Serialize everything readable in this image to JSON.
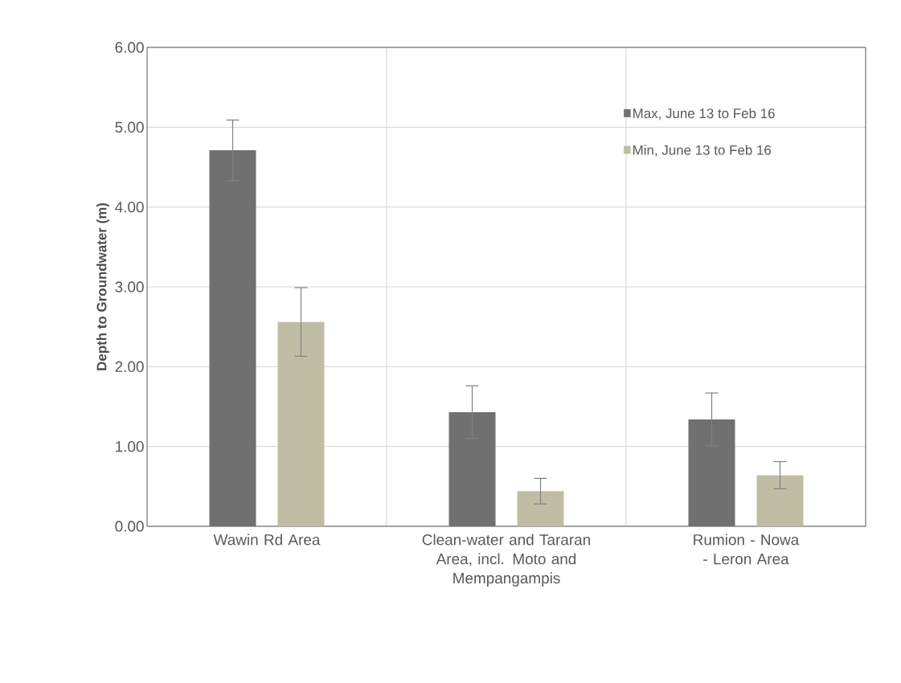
{
  "chart_data": {
    "type": "bar",
    "ylabel": "Depth to Groundwater (m)",
    "categories": [
      "Wawin Rd Area",
      "Clean-water and Tararan Area, incl. Moto and Mempangampis",
      "Rumion - Nowa - Leron Area"
    ],
    "series": [
      {
        "name": "Max, June 13 to Feb 16",
        "color": "#707070",
        "values": [
          4.71,
          1.43,
          1.34
        ],
        "errors": [
          0.38,
          0.33,
          0.33
        ]
      },
      {
        "name": "Min, June 13 to Feb 16",
        "color": "#bfbea5",
        "values": [
          2.56,
          0.44,
          0.64
        ],
        "errors": [
          0.43,
          0.16,
          0.17
        ]
      }
    ],
    "ylim": [
      0,
      6
    ],
    "yticks": [
      {
        "value": 0,
        "label": "0.00"
      },
      {
        "value": 1,
        "label": "1.00"
      },
      {
        "value": 2,
        "label": "2.00"
      },
      {
        "value": 3,
        "label": "3.00"
      },
      {
        "value": 4,
        "label": "4.00"
      },
      {
        "value": 5,
        "label": "5.00"
      },
      {
        "value": 6,
        "label": "6.00"
      }
    ],
    "grid": true,
    "legend": "top right"
  }
}
